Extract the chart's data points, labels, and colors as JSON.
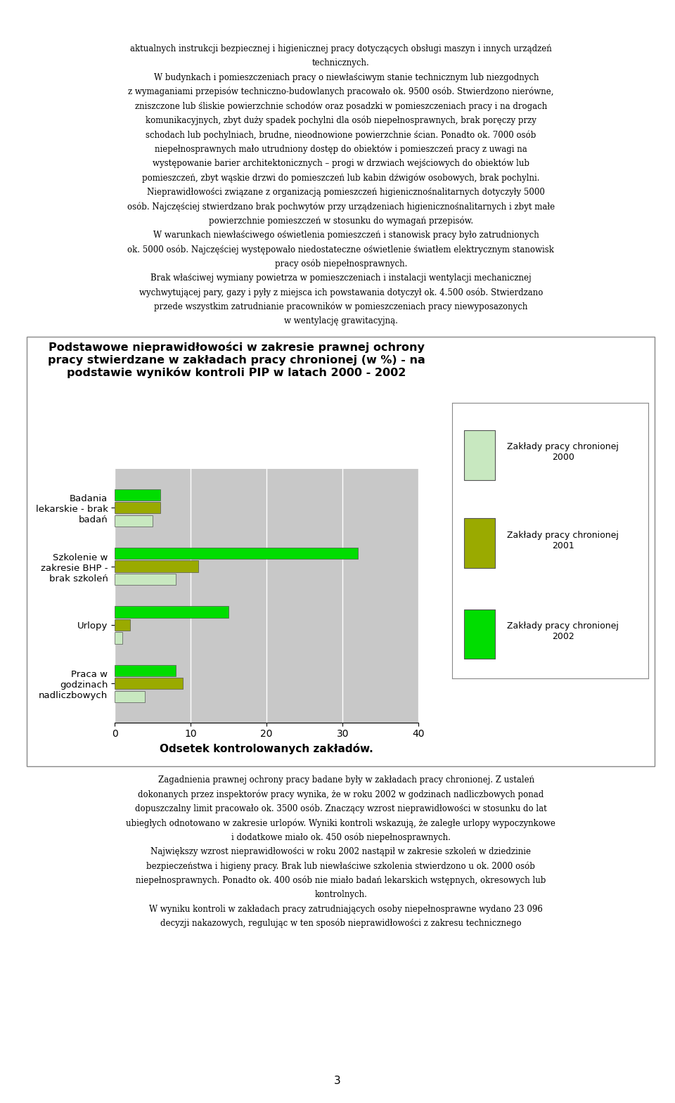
{
  "title": "Podstawowe nieprawidłowości w zakresie prawnej ochrony\npracy stwierdzane w zakładach pracy chronionej (w %) - na\npodstawie wyników kontroli PIP w latach 2000 - 2002",
  "categories": [
    "Badania\nlekarskie - brak\nbadań",
    "Szkolenie w\nzakresie BHP -\nbrak szkoleń",
    "Urlopy",
    "Praca w\ngodzinach\nnadliczbowych"
  ],
  "series_2000": [
    5,
    8,
    1,
    4
  ],
  "series_2001": [
    6,
    11,
    2,
    9
  ],
  "series_2002": [
    6,
    32,
    15,
    8
  ],
  "color_2000": "#c8e8c0",
  "color_2001": "#9aaa00",
  "color_2002": "#00dd00",
  "legend_labels": [
    "Zakłady pracy chronionej\n2000",
    "Zakłady pracy chronionej\n2001",
    "Zakłady pracy chronionej\n2002"
  ],
  "xlabel": "Odsetek kontrolowanych zakładów.",
  "xlim": [
    0,
    40
  ],
  "xticks": [
    0,
    10,
    20,
    30,
    40
  ],
  "chart_bg": "#c8c8c8",
  "fig_bg": "#ffffff",
  "text_above": [
    "aktualnych instrukcji bezpiecznej i higienicznej pracy dotyczących obsługi maszyn i innych urządzeń",
    "technicznych.",
    "    W budynkach i pomieszczeniach pracy o niewłaściwym stanie technicznym lub niezgodnych",
    "z wymaganiami przepisów techniczno-budowlanych pracowało ok. 9500 osób. Stwierdzono nierówne,",
    "zniszczone lub śliskie powierzchnie schodów oraz posadzki w pomieszczeniach pracy i na drogach",
    "komunikacyjnych, zbyt duży spadek pochylni dla osób niepełnosprawnych, brak poręczy przy",
    "schodach lub pochylniach, brudne, nieodnowione powierzchnie ścian. Ponadto ok. 7000 osób",
    "niepełnosprawnych mało utrudniony dostęp do obiektów i pomieszczeń pracy z uwagi na",
    "występowanie barier architektonicznych – progi w drzwiach wejściowych do obiektów lub",
    "pomieszczeń, zbyt wąskie drzwi do pomieszczeń lub kabin dźwigów osobowych, brak pochylni.",
    "    Nieprawidłowości związane z organizacją pomieszczeń higienicznośnalitarnych dotyczyły 5000",
    "osób. Najczęściej stwierdzano brak pochwytów przy urządzeniach higienicznośnalitarnych i zbyt małe",
    "powierzchnie pomieszczeń w stosunku do wymagań przepisów.",
    "    W warunkach niewłaściwego oświetlenia pomieszczeń i stanowisk pracy było zatrudnionych",
    "ok. 5000 osób. Najczęściej występowało niedostateczne oświetlenie światłem elektrycznym stanowisk",
    "pracy osób niepełnosprawnych.",
    "Brak właściwej wymiany powietrza w pomieszczeniach i instalacji wentylacji mechanicznej",
    "wychwytującej pary, gazy i pyły z miejsca ich powstawania dotyczył ok. 4.500 osób. Stwierdzano",
    "przede wszystkim zatrudnianie pracowników w pomieszczeniach pracy niewyposazonych",
    "w wentylację grawitacyjną."
  ]
}
